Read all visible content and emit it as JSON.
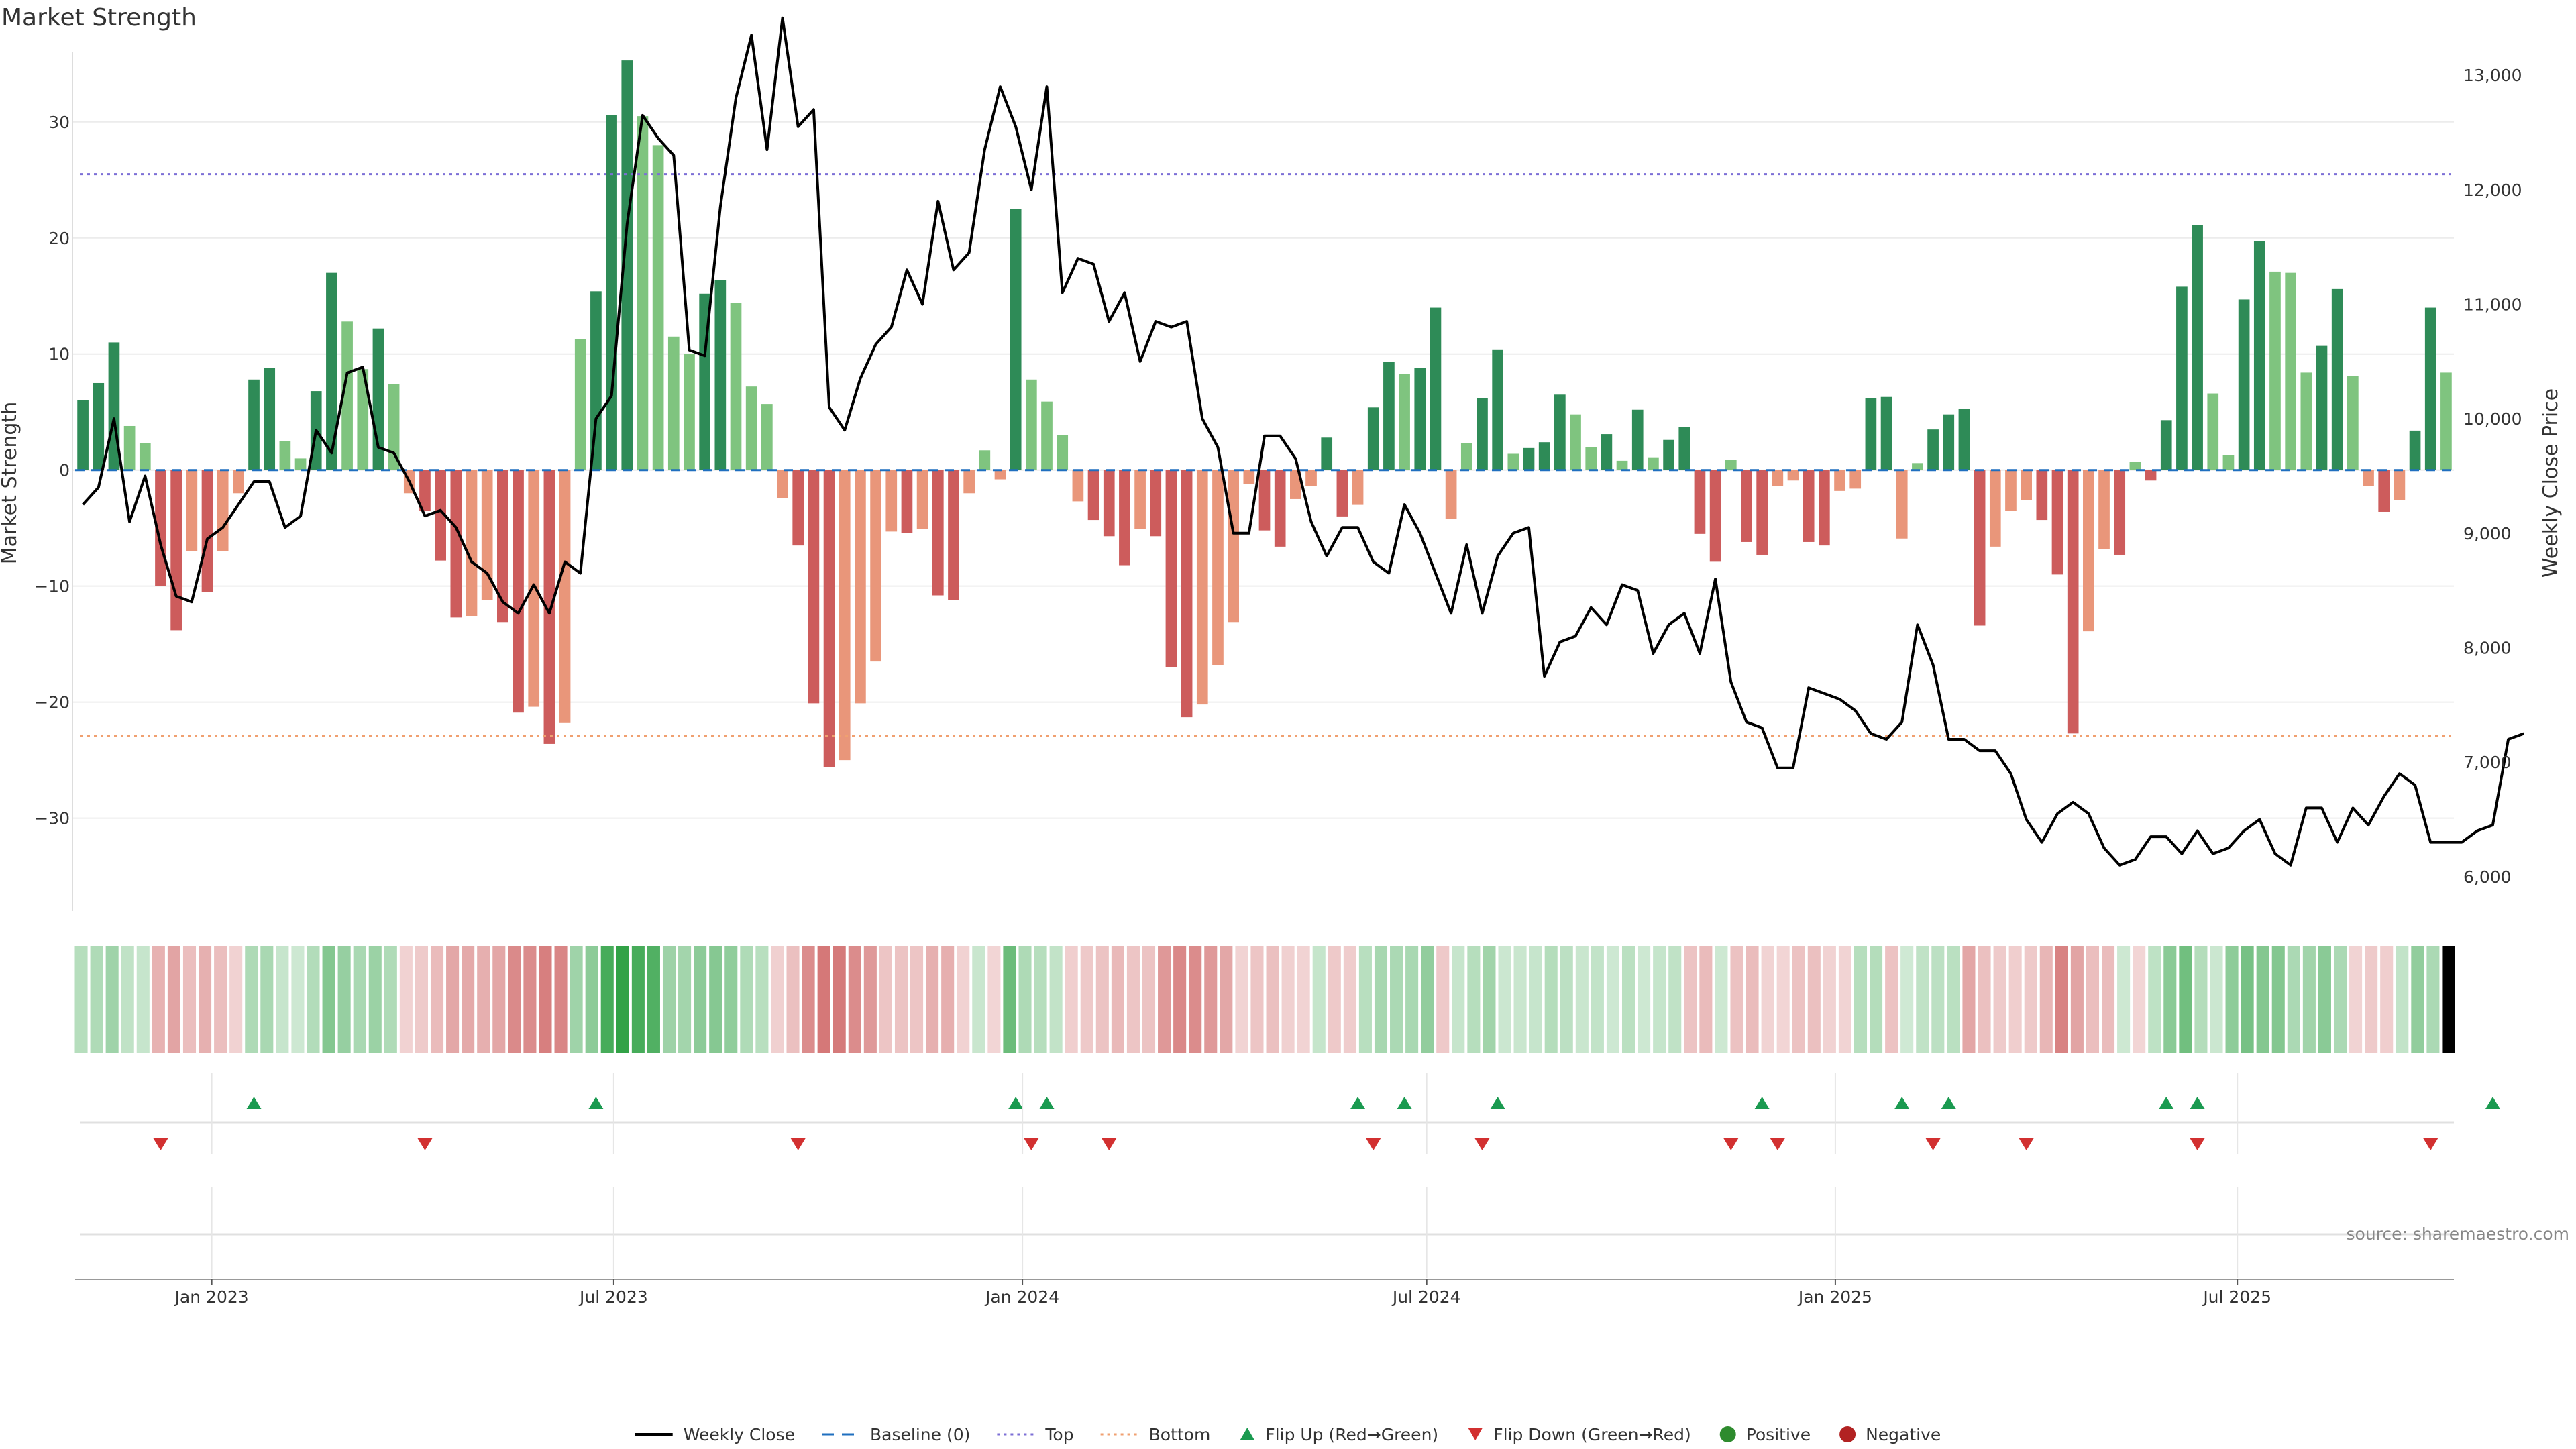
{
  "chart_data": {
    "type": "bar",
    "title": "Market Strength",
    "ylabel_left": "Market Strength",
    "ylabel_right": "Weekly Close Price",
    "ylim_left": [
      -38,
      36
    ],
    "ylim_right": [
      5700,
      13200
    ],
    "yticks_left": [
      30,
      20,
      10,
      0,
      -10,
      -20,
      -30
    ],
    "ytick_labels_left": [
      "30",
      "20",
      "10",
      "0",
      "−10",
      "−20",
      "−30"
    ],
    "yticks_right": [
      6000,
      7000,
      8000,
      9000,
      10000,
      11000,
      12000,
      13000
    ],
    "ytick_labels_right": [
      "6,000",
      "7,000",
      "8,000",
      "9,000",
      "10,000",
      "11,000",
      "12,000",
      "13,000"
    ],
    "top_line": 25.5,
    "bottom_line": -22.9,
    "x_start": "2022-11-04",
    "x_step_days": 7,
    "xticks": [
      {
        "label": "Jan 2023",
        "date": "2023-01-01"
      },
      {
        "label": "Jul 2023",
        "date": "2023-07-01"
      },
      {
        "label": "Jan 2024",
        "date": "2024-01-01"
      },
      {
        "label": "Jul 2024",
        "date": "2024-07-01"
      },
      {
        "label": "Jan 2025",
        "date": "2025-01-01"
      },
      {
        "label": "Jul 2025",
        "date": "2025-07-01"
      }
    ],
    "strength": [
      6,
      7.5,
      11,
      3.8,
      2.3,
      -10,
      -13.8,
      -7,
      -10.5,
      -7,
      -2,
      7.8,
      8.8,
      2.5,
      1,
      6.8,
      17,
      12.8,
      8.7,
      12.2,
      7.4,
      -2,
      -3.5,
      -7.8,
      -12.7,
      -12.6,
      -11.2,
      -13.1,
      -20.9,
      -20.4,
      -23.6,
      -21.8,
      11.3,
      15.4,
      30.6,
      35.3,
      30.5,
      28,
      11.5,
      10,
      15.2,
      16.4,
      14.4,
      7.2,
      5.7,
      -2.4,
      -6.5,
      -20.1,
      -25.6,
      -25,
      -20.1,
      -16.5,
      -5.3,
      -5.4,
      -5.1,
      -10.8,
      -11.2,
      -2,
      1.7,
      -0.8,
      22.5,
      7.8,
      5.9,
      3,
      -2.7,
      -4.3,
      -5.7,
      -8.2,
      -5.1,
      -5.7,
      -17,
      -21.3,
      -20.2,
      -16.8,
      -13.1,
      -1.2,
      -5.2,
      -6.6,
      -2.5,
      -1.4,
      2.8,
      -4,
      -3,
      5.4,
      9.3,
      8.3,
      8.8,
      14,
      -4.2,
      2.3,
      6.2,
      10.4,
      1.4,
      1.9,
      2.4,
      6.5,
      4.8,
      2,
      3.1,
      0.8,
      5.2,
      1.1,
      2.6,
      3.7,
      -5.5,
      -7.9,
      0.9,
      -6.2,
      -7.3,
      -1.4,
      -0.9,
      -6.2,
      -6.5,
      -1.8,
      -1.6,
      6.2,
      6.3,
      -5.9,
      0.6,
      3.5,
      4.8,
      5.3,
      -13.4,
      -6.6,
      -3.5,
      -2.6,
      -4.3,
      -9,
      -22.7,
      -13.9,
      -6.8,
      -7.3,
      0.7,
      -0.9,
      4.3,
      15.8,
      21.1,
      6.6,
      1.3,
      14.7,
      19.7,
      17.1,
      17,
      8.4,
      10.7,
      15.6,
      8.1,
      -1.4,
      -3.6,
      -2.6,
      3.4,
      14,
      8.4
    ],
    "close": [
      9250,
      9400,
      10000,
      9100,
      9500,
      8900,
      8450,
      8400,
      8950,
      9050,
      9250,
      9450,
      9450,
      9050,
      9150,
      9900,
      9700,
      10400,
      10450,
      9750,
      9700,
      9450,
      9150,
      9200,
      9050,
      8750,
      8650,
      8400,
      8300,
      8550,
      8300,
      8750,
      8650,
      10000,
      10200,
      11700,
      12650,
      12450,
      12300,
      10600,
      10550,
      11850,
      12800,
      13350,
      12350,
      13500,
      12550,
      12700,
      10100,
      9900,
      10350,
      10650,
      10800,
      11300,
      11000,
      11900,
      11300,
      11450,
      12350,
      12900,
      12550,
      12000,
      12900,
      11100,
      11400,
      11350,
      10850,
      11100,
      10500,
      10850,
      10800,
      10850,
      10000,
      9750,
      9000,
      9000,
      9850,
      9850,
      9650,
      9100,
      8800,
      9050,
      9050,
      8750,
      8650,
      9250,
      9000,
      8650,
      8300,
      8900,
      8300,
      8800,
      9000,
      9050,
      7750,
      8050,
      8100,
      8350,
      8200,
      8550,
      8500,
      7950,
      8200,
      8300,
      7950,
      8600,
      7700,
      7350,
      7300,
      6950,
      6950,
      7650,
      7600,
      7550,
      7450,
      7250,
      7200,
      7350,
      8200,
      7850,
      7200,
      7200,
      7100,
      7100,
      6900,
      6500,
      6300,
      6550,
      6650,
      6550,
      6250,
      6100,
      6150,
      6350,
      6350,
      6200,
      6400,
      6200,
      6250,
      6400,
      6500,
      6200,
      6100,
      6600,
      6600,
      6300,
      6600,
      6450,
      6700,
      6900,
      6800,
      6300,
      6300,
      6300,
      6400,
      6450,
      7200,
      7250
    ],
    "flip_up_index": [
      11,
      33,
      60,
      62,
      82,
      85,
      91,
      108,
      117,
      120,
      134,
      136,
      155
    ],
    "flip_down_index": [
      5,
      22,
      46,
      61,
      66,
      83,
      90,
      106,
      109,
      119,
      125,
      136,
      151
    ],
    "heat_strength_index": [
      0,
      153
    ],
    "legend": [
      {
        "label": "Weekly Close",
        "symbol": "line",
        "color": "#000000"
      },
      {
        "label": "Baseline (0)",
        "symbol": "dash",
        "color": "#1f6fbf"
      },
      {
        "label": "Top",
        "symbol": "dot",
        "color": "#7c6fd6"
      },
      {
        "label": "Bottom",
        "symbol": "dot",
        "color": "#f0a070"
      },
      {
        "label": "Flip Up (Red→Green)",
        "symbol": "tri-up",
        "color": "#1a9a50"
      },
      {
        "label": "Flip Down (Green→Red)",
        "symbol": "tri-down",
        "color": "#d23030"
      },
      {
        "label": "Positive",
        "symbol": "circle",
        "color": "#2e8b2e"
      },
      {
        "label": "Negative",
        "symbol": "circle",
        "color": "#b22222"
      }
    ],
    "colors": {
      "pos_strong": "#2e8b57",
      "pos_weak": "#7fc47f",
      "neg_strong": "#cd5c5c",
      "neg_weak": "#e9967a",
      "baseline": "#1f6fbf",
      "top": "#7c6fd6",
      "bottom": "#f0a070",
      "close": "#000000"
    }
  },
  "source": "source: sharemaestro.com"
}
